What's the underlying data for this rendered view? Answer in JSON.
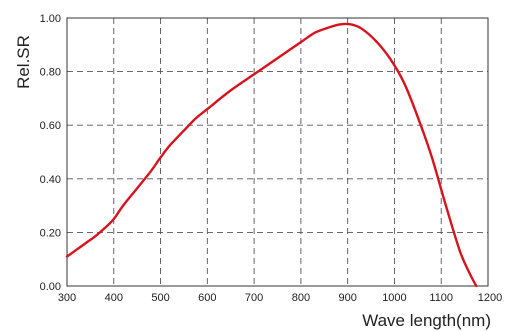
{
  "chart_data": {
    "type": "line",
    "xlabel": "Wave length(nm)",
    "ylabel": "Rel.SR",
    "xlim": [
      300,
      1200
    ],
    "ylim": [
      0,
      1.0
    ],
    "x_ticks": [
      "300",
      "400",
      "500",
      "600",
      "700",
      "800",
      "900",
      "1000",
      "1100",
      "1200"
    ],
    "y_ticks": [
      "0.00",
      "0.20",
      "0.40",
      "0.60",
      "0.80",
      "1.00"
    ],
    "grid": true,
    "line_color": "#d7141e",
    "series": [
      {
        "name": "",
        "x": [
          300,
          320,
          340,
          360,
          380,
          400,
          420,
          450,
          480,
          500,
          520,
          550,
          575,
          600,
          650,
          700,
          750,
          800,
          830,
          860,
          880,
          895,
          910,
          930,
          960,
          990,
          1020,
          1050,
          1080,
          1110,
          1140,
          1160,
          1175
        ],
        "y": [
          0.11,
          0.135,
          0.16,
          0.185,
          0.215,
          0.25,
          0.3,
          0.365,
          0.43,
          0.48,
          0.525,
          0.58,
          0.625,
          0.66,
          0.73,
          0.79,
          0.85,
          0.91,
          0.945,
          0.965,
          0.975,
          0.978,
          0.975,
          0.96,
          0.915,
          0.85,
          0.76,
          0.63,
          0.48,
          0.3,
          0.13,
          0.05,
          0.0
        ]
      }
    ]
  }
}
